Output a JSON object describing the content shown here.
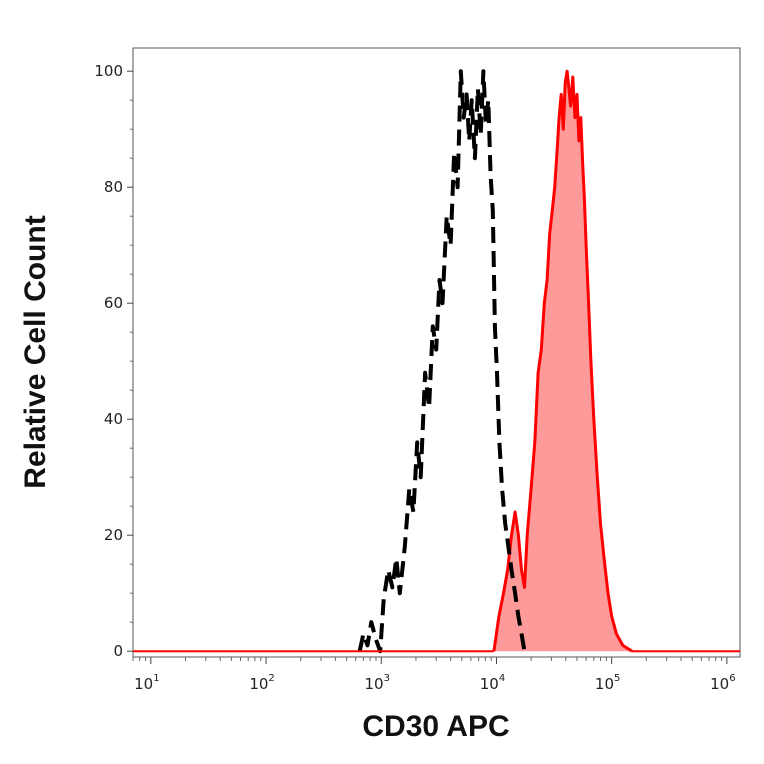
{
  "chart_data": {
    "type": "area",
    "xlabel": "CD30 APC",
    "ylabel": "Relative Cell Count",
    "x_scale": "log",
    "xlim": [
      7,
      1300000
    ],
    "ylim": [
      -1,
      104
    ],
    "x_ticks": [
      {
        "value": 10,
        "base": "10",
        "exp": "1"
      },
      {
        "value": 100,
        "base": "10",
        "exp": "2"
      },
      {
        "value": 1000,
        "base": "10",
        "exp": "3"
      },
      {
        "value": 10000,
        "base": "10",
        "exp": "4"
      },
      {
        "value": 100000,
        "base": "10",
        "exp": "5"
      },
      {
        "value": 1000000,
        "base": "10",
        "exp": "6"
      }
    ],
    "y_ticks": [
      0,
      20,
      40,
      60,
      80,
      100
    ],
    "grid": false,
    "legend": "none",
    "series": [
      {
        "style": "dashed",
        "color": "#000000",
        "fill": "none",
        "points": [
          [
            650,
            0
          ],
          [
            700,
            3
          ],
          [
            760,
            1
          ],
          [
            820,
            5
          ],
          [
            900,
            2
          ],
          [
            980,
            0
          ],
          [
            1050,
            9
          ],
          [
            1150,
            14
          ],
          [
            1250,
            11
          ],
          [
            1350,
            16
          ],
          [
            1450,
            10
          ],
          [
            1600,
            18
          ],
          [
            1750,
            28
          ],
          [
            1900,
            24
          ],
          [
            2050,
            36
          ],
          [
            2200,
            30
          ],
          [
            2400,
            48
          ],
          [
            2600,
            42
          ],
          [
            2800,
            56
          ],
          [
            3000,
            52
          ],
          [
            3200,
            64
          ],
          [
            3400,
            60
          ],
          [
            3700,
            75
          ],
          [
            4000,
            70
          ],
          [
            4300,
            86
          ],
          [
            4600,
            80
          ],
          [
            4900,
            100
          ],
          [
            5200,
            92
          ],
          [
            5500,
            96
          ],
          [
            5800,
            88
          ],
          [
            6100,
            95
          ],
          [
            6500,
            85
          ],
          [
            6900,
            97
          ],
          [
            7300,
            89
          ],
          [
            7700,
            100
          ],
          [
            8100,
            91
          ],
          [
            8500,
            95
          ],
          [
            8900,
            82
          ],
          [
            9300,
            76
          ],
          [
            9700,
            56
          ],
          [
            10100,
            48
          ],
          [
            10600,
            36
          ],
          [
            11200,
            28
          ],
          [
            11900,
            22
          ],
          [
            12700,
            18
          ],
          [
            13500,
            14
          ],
          [
            14500,
            10
          ],
          [
            15500,
            6
          ],
          [
            16500,
            3
          ],
          [
            17500,
            0
          ]
        ]
      },
      {
        "style": "solid",
        "color": "#ff0000",
        "fill": "#ff9a9a",
        "points": [
          [
            9500,
            0
          ],
          [
            10500,
            6
          ],
          [
            11500,
            10
          ],
          [
            12500,
            14
          ],
          [
            13500,
            20
          ],
          [
            14500,
            24
          ],
          [
            15500,
            20
          ],
          [
            16500,
            14
          ],
          [
            17500,
            11
          ],
          [
            18500,
            20
          ],
          [
            20000,
            28
          ],
          [
            21500,
            36
          ],
          [
            23000,
            48
          ],
          [
            24500,
            52
          ],
          [
            26000,
            60
          ],
          [
            27500,
            64
          ],
          [
            29000,
            72
          ],
          [
            30500,
            76
          ],
          [
            32000,
            80
          ],
          [
            33500,
            86
          ],
          [
            35000,
            92
          ],
          [
            36500,
            96
          ],
          [
            38000,
            90
          ],
          [
            39500,
            98
          ],
          [
            41000,
            100
          ],
          [
            42500,
            97
          ],
          [
            44000,
            94
          ],
          [
            46000,
            99
          ],
          [
            48000,
            92
          ],
          [
            50000,
            96
          ],
          [
            52000,
            88
          ],
          [
            54000,
            92
          ],
          [
            56000,
            84
          ],
          [
            58000,
            78
          ],
          [
            60000,
            70
          ],
          [
            63000,
            60
          ],
          [
            66000,
            50
          ],
          [
            70000,
            40
          ],
          [
            75000,
            30
          ],
          [
            80000,
            22
          ],
          [
            86000,
            16
          ],
          [
            93000,
            10
          ],
          [
            100000,
            6
          ],
          [
            110000,
            3
          ],
          [
            125000,
            1
          ],
          [
            150000,
            0
          ]
        ]
      }
    ]
  }
}
